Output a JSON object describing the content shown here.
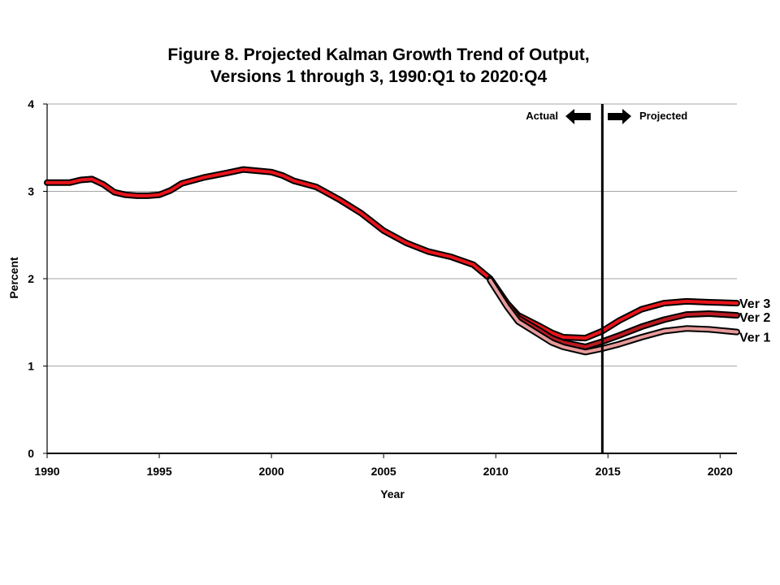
{
  "chart_data": {
    "type": "line",
    "title": "Figure 8. Projected Kalman Growth Trend of Output,",
    "subtitle": "Versions 1 through 3, 1990:Q1 to 2020:Q4",
    "xlabel": "Year",
    "ylabel": "Percent",
    "xlim": [
      1990,
      2020.75
    ],
    "ylim": [
      0,
      4
    ],
    "x_ticks": [
      1990,
      1995,
      2000,
      2005,
      2010,
      2015,
      2020
    ],
    "y_ticks": [
      0,
      1,
      2,
      3,
      4
    ],
    "grid": "horizontal",
    "divider": {
      "x": 2014.75,
      "left_label": "Actual",
      "right_label": "Projected"
    },
    "series": [
      {
        "name": "Ver 3",
        "color": "#e8141b",
        "x": [
          1990,
          1991,
          1991.5,
          1992,
          1992.5,
          1993,
          1993.5,
          1994,
          1994.5,
          1995,
          1995.5,
          1996,
          1997,
          1998,
          1998.75,
          2000,
          2000.5,
          2001,
          2002,
          2003,
          2004,
          2005,
          2006,
          2007,
          2008,
          2009,
          2009.75,
          2010.5,
          2011,
          2012,
          2012.5,
          2013,
          2014,
          2014.75,
          2015.5,
          2016.5,
          2017.5,
          2018.5,
          2019.5,
          2020.75
        ],
        "values": [
          3.1,
          3.1,
          3.13,
          3.14,
          3.08,
          2.99,
          2.96,
          2.95,
          2.95,
          2.96,
          3.01,
          3.09,
          3.16,
          3.21,
          3.25,
          3.22,
          3.18,
          3.12,
          3.05,
          2.91,
          2.75,
          2.55,
          2.41,
          2.31,
          2.25,
          2.16,
          2.0,
          1.72,
          1.58,
          1.45,
          1.38,
          1.33,
          1.32,
          1.4,
          1.52,
          1.65,
          1.72,
          1.74,
          1.73,
          1.72
        ]
      },
      {
        "name": "Ver 2",
        "color": "#b81a20",
        "x": [
          2009.75,
          2010.5,
          2011,
          2012,
          2012.5,
          2013,
          2014,
          2014.75,
          2015.5,
          2016.5,
          2017.5,
          2018.5,
          2019.5,
          2020.75
        ],
        "values": [
          2.0,
          1.72,
          1.55,
          1.4,
          1.32,
          1.27,
          1.22,
          1.28,
          1.35,
          1.45,
          1.53,
          1.59,
          1.6,
          1.58
        ]
      },
      {
        "name": "Ver 1",
        "color": "#e79a9a",
        "x": [
          2009.75,
          2010.5,
          2011,
          2012,
          2012.5,
          2013,
          2014,
          2014.75,
          2015.5,
          2016.5,
          2017.5,
          2018.5,
          2019.5,
          2020.75
        ],
        "values": [
          1.98,
          1.68,
          1.51,
          1.35,
          1.27,
          1.22,
          1.16,
          1.2,
          1.25,
          1.33,
          1.4,
          1.43,
          1.42,
          1.39
        ]
      }
    ]
  }
}
